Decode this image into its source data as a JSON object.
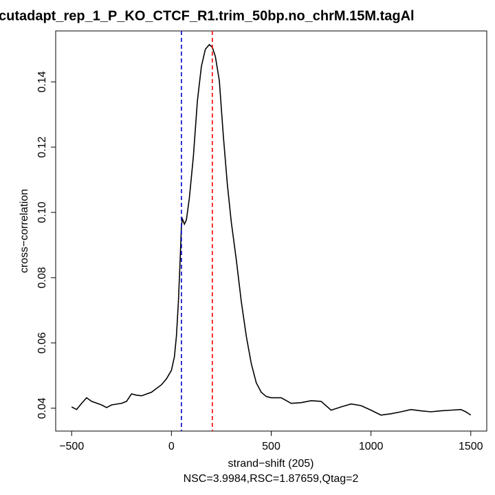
{
  "chart_data": {
    "type": "line",
    "title": "cutadapt_rep_1_P_KO_CTCF_R1.trim_50bp.no_chrM.15M.tagAl",
    "x_label": "strand−shift (205)",
    "subtitle": "NSC=3.9984,RSC=1.87659,Qtag=2",
    "y_label": "cross−correlation",
    "xlim": [
      -580,
      1580
    ],
    "ylim": [
      0.033,
      0.1556
    ],
    "xticks": [
      {
        "value": -500,
        "label": "−500"
      },
      0,
      500,
      1000,
      1500
    ],
    "yticks": [
      0.04,
      0.06,
      0.08,
      {
        "value": 0.1,
        "label": "0.10"
      },
      0.12,
      0.14
    ],
    "vlines": [
      {
        "value": 50,
        "color": "#0000cc"
      },
      {
        "value": 205,
        "color": "#ff0000"
      }
    ],
    "x": [
      -500,
      -475,
      -450,
      -425,
      -400,
      -350,
      -325,
      -300,
      -250,
      -225,
      -200,
      -175,
      -150,
      -100,
      -50,
      -25,
      0,
      15,
      25,
      35,
      45,
      50,
      55,
      65,
      75,
      90,
      110,
      130,
      150,
      170,
      190,
      205,
      220,
      240,
      260,
      280,
      300,
      325,
      350,
      375,
      400,
      425,
      450,
      475,
      500,
      550,
      600,
      650,
      700,
      750,
      800,
      850,
      900,
      950,
      1000,
      1050,
      1100,
      1150,
      1200,
      1250,
      1300,
      1350,
      1400,
      1450,
      1475,
      1500
    ],
    "series": [
      {
        "name": "cross-correlation",
        "color": "#000000",
        "values": [
          0.0404,
          0.0396,
          0.0415,
          0.0432,
          0.0421,
          0.041,
          0.0402,
          0.041,
          0.0415,
          0.0421,
          0.0444,
          0.044,
          0.0438,
          0.0449,
          0.0472,
          0.049,
          0.0516,
          0.0558,
          0.0621,
          0.0727,
          0.0875,
          0.096,
          0.098,
          0.0964,
          0.0977,
          0.1045,
          0.1172,
          0.1341,
          0.1447,
          0.15,
          0.1514,
          0.1506,
          0.1478,
          0.1404,
          0.1235,
          0.1087,
          0.097,
          0.0855,
          0.0727,
          0.0621,
          0.0537,
          0.0478,
          0.0449,
          0.0436,
          0.0432,
          0.0432,
          0.0415,
          0.0417,
          0.0423,
          0.0421,
          0.0394,
          0.0404,
          0.0413,
          0.0408,
          0.0394,
          0.0379,
          0.0383,
          0.0389,
          0.0396,
          0.0392,
          0.0389,
          0.0392,
          0.0394,
          0.0396,
          0.0389,
          0.0379
        ]
      }
    ]
  }
}
